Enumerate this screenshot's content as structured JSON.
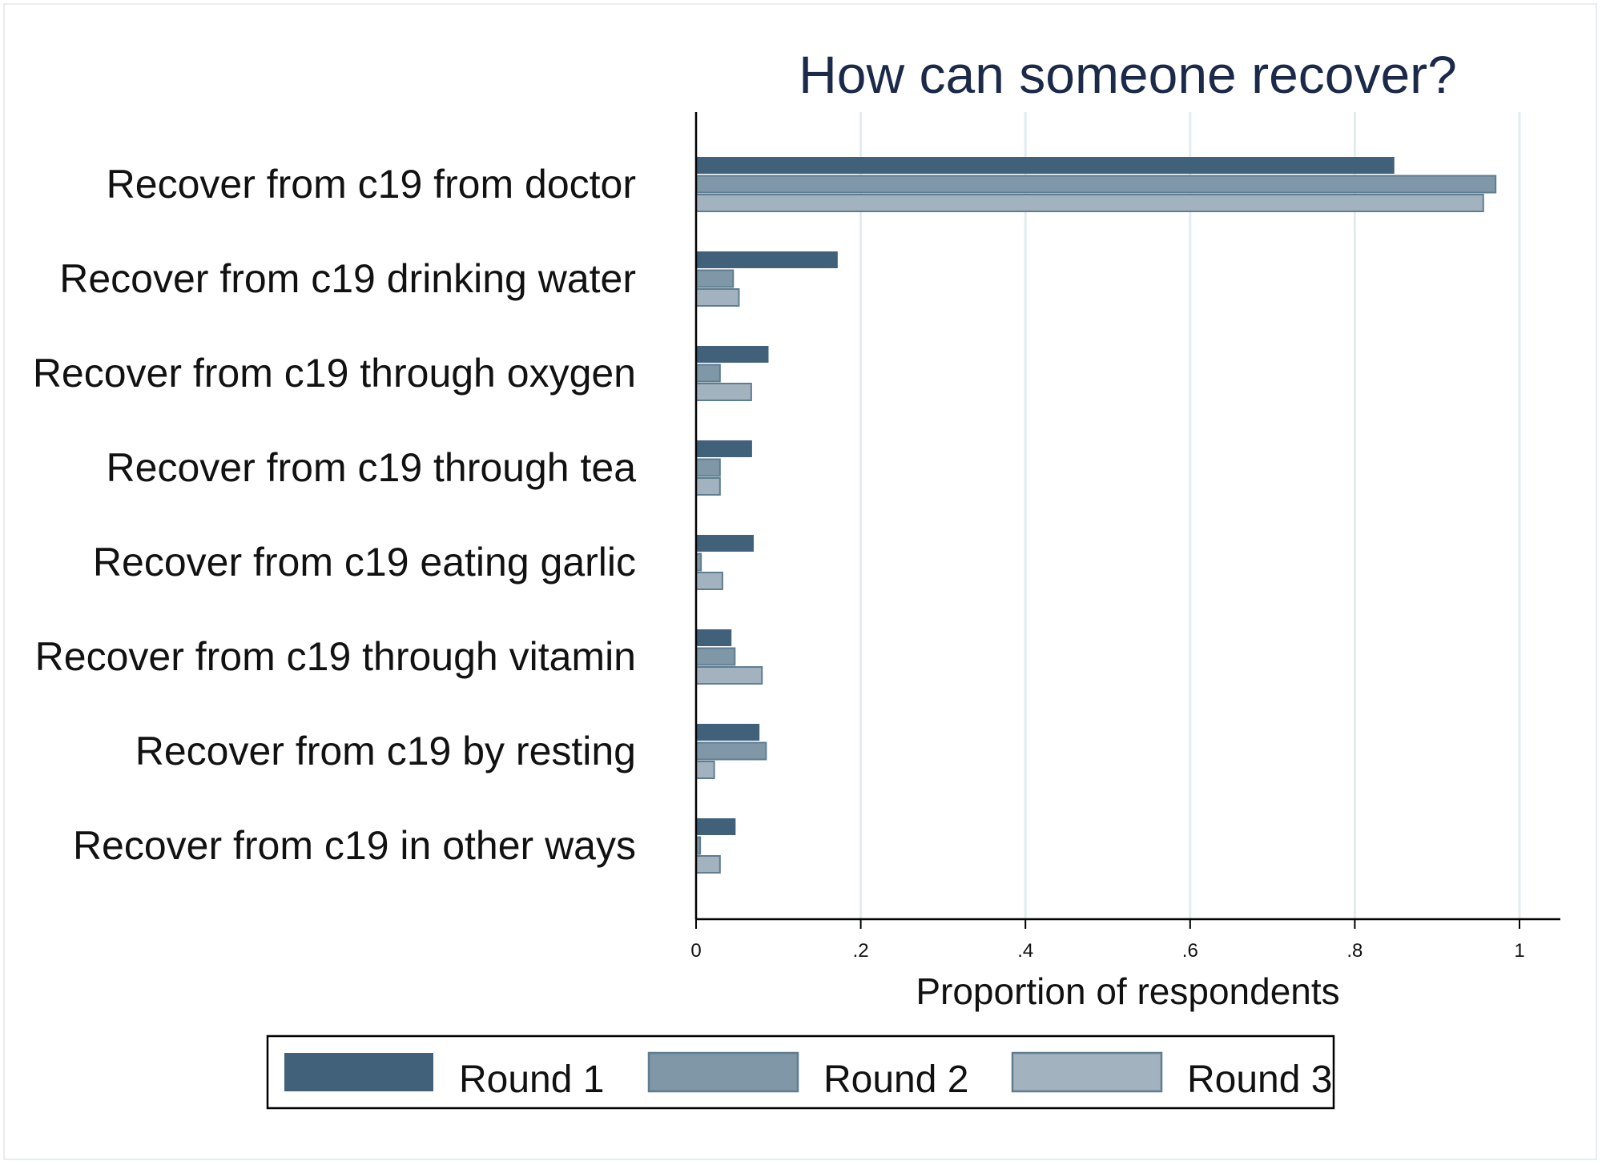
{
  "chart_data": {
    "type": "bar",
    "orientation": "horizontal",
    "title": "How can someone recover?",
    "xlabel": "Proportion of respondents",
    "ylabel": "",
    "xlim": [
      0,
      1.05
    ],
    "x_ticks": [
      0,
      0.2,
      0.4,
      0.6,
      0.8,
      1
    ],
    "x_tick_labels": [
      "0",
      ".2",
      ".4",
      ".6",
      ".8",
      "1"
    ],
    "grid": "vertical",
    "legend_position": "bottom",
    "categories": [
      "Recover from c19 from doctor",
      "Recover from c19 drinking water",
      "Recover from c19 through oxygen",
      "Recover from c19 through tea",
      "Recover from c19 eating garlic",
      "Recover from c19 through vitamin",
      "Recover from c19 by resting",
      "Recover from c19 in other ways"
    ],
    "series": [
      {
        "name": "Round 1",
        "color": "#41607a",
        "values": [
          0.848,
          0.172,
          0.088,
          0.068,
          0.07,
          0.043,
          0.077,
          0.048
        ]
      },
      {
        "name": "Round 2",
        "color": "#7f97a6",
        "values": [
          0.971,
          0.045,
          0.029,
          0.029,
          0.006,
          0.047,
          0.085,
          0.005
        ]
      },
      {
        "name": "Round 3",
        "color": "#a2b2be",
        "values": [
          0.956,
          0.052,
          0.067,
          0.029,
          0.032,
          0.08,
          0.022,
          0.029
        ]
      }
    ]
  }
}
